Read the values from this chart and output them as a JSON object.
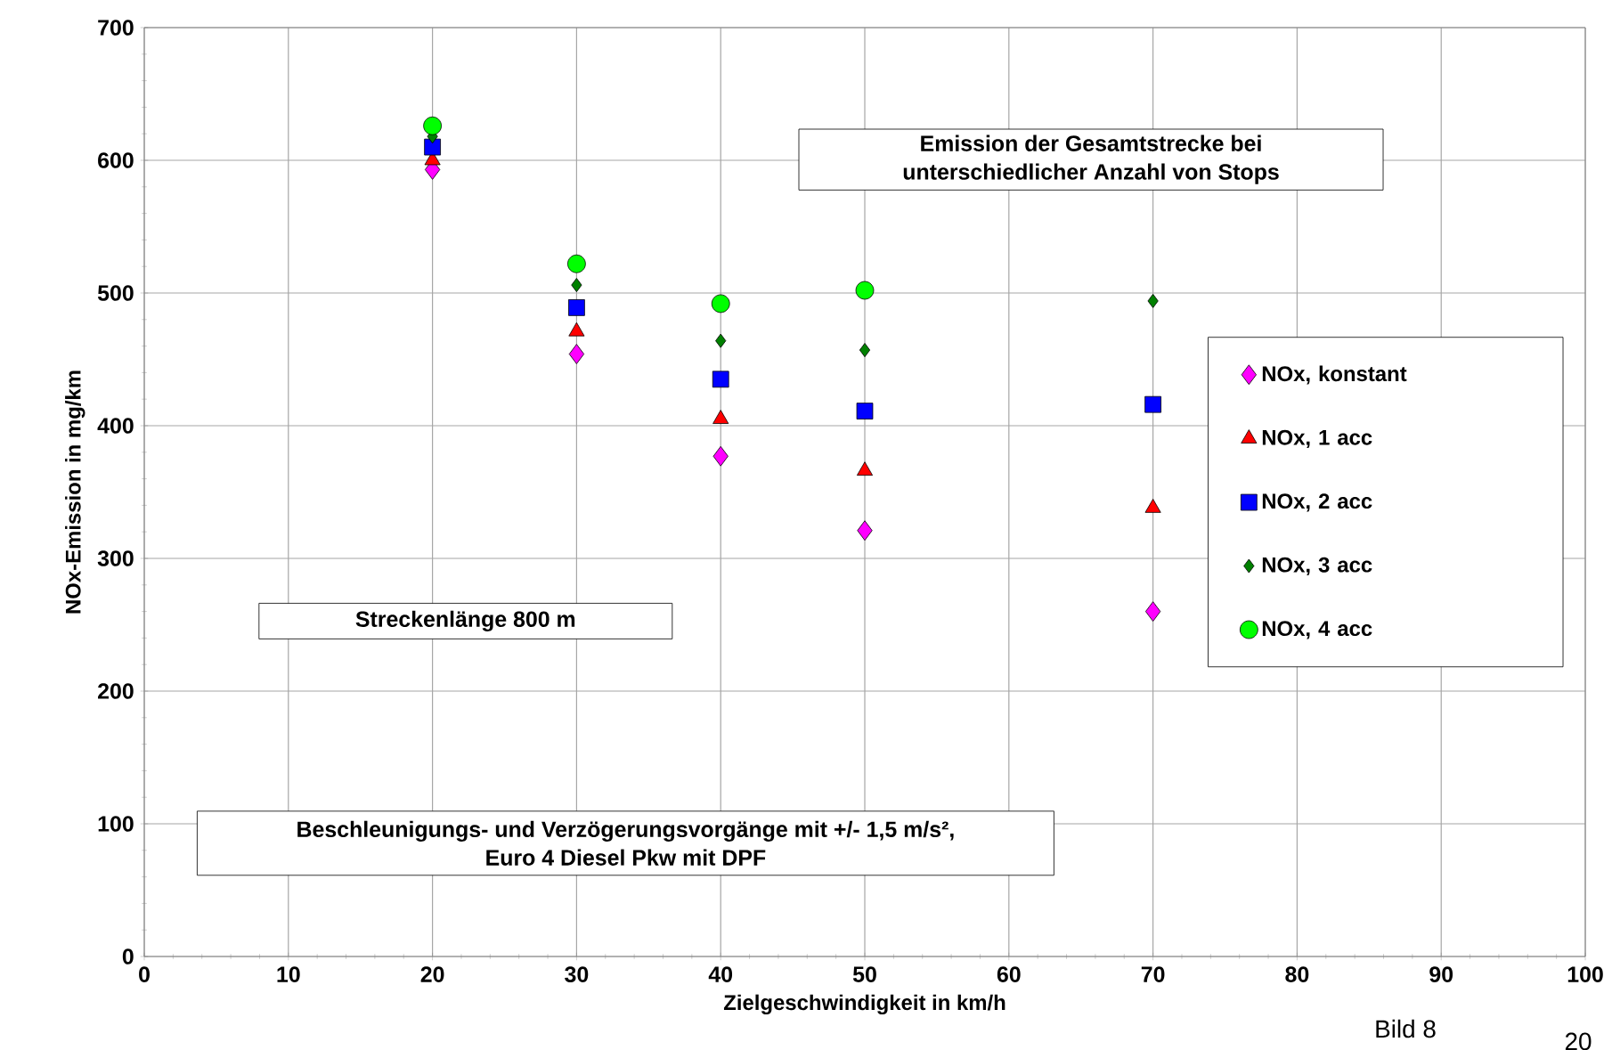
{
  "chart_data": {
    "type": "scatter",
    "xlabel": "Zielgeschwindigkeit in km/h",
    "ylabel": "NOx-Emission in mg/km",
    "x": [
      20,
      30,
      40,
      50,
      70
    ],
    "series": [
      {
        "name": "NOx, konstant",
        "color": "#ff00ff",
        "marker": "diamond",
        "values": [
          593,
          454,
          377,
          321,
          260
        ]
      },
      {
        "name": "NOx, 1 acc",
        "color": "#ff0000",
        "marker": "triangle",
        "values": [
          600,
          471,
          405,
          366,
          338
        ]
      },
      {
        "name": "NOx, 2 acc",
        "color": "#0000ff",
        "marker": "square",
        "values": [
          610,
          489,
          435,
          411,
          416
        ]
      },
      {
        "name": "NOx, 3 acc",
        "color": "#008000",
        "marker": "diamond",
        "values": [
          618,
          506,
          464,
          457,
          494
        ]
      },
      {
        "name": "NOx, 4 acc",
        "color": "#00ff00",
        "marker": "circle",
        "values": [
          626,
          522,
          492,
          502,
          null
        ]
      }
    ],
    "xlim": [
      0,
      100
    ],
    "ylim": [
      0,
      700
    ],
    "xticks": [
      0,
      10,
      20,
      30,
      40,
      50,
      60,
      70,
      80,
      90,
      100
    ],
    "yticks": [
      0,
      100,
      200,
      300,
      400,
      500,
      600,
      700
    ],
    "grid": true,
    "legend": "right",
    "annotations": [
      "Emission der Gesamtstrecke bei unterschiedlicher Anzahl von Stops",
      "Streckenlänge 800 m",
      "Beschleunigungs- und Verzögerungsvorgänge mit +/- 1,5 m/s², Euro 4 Diesel Pkw mit DPF",
      "Bild 8",
      "20"
    ]
  }
}
